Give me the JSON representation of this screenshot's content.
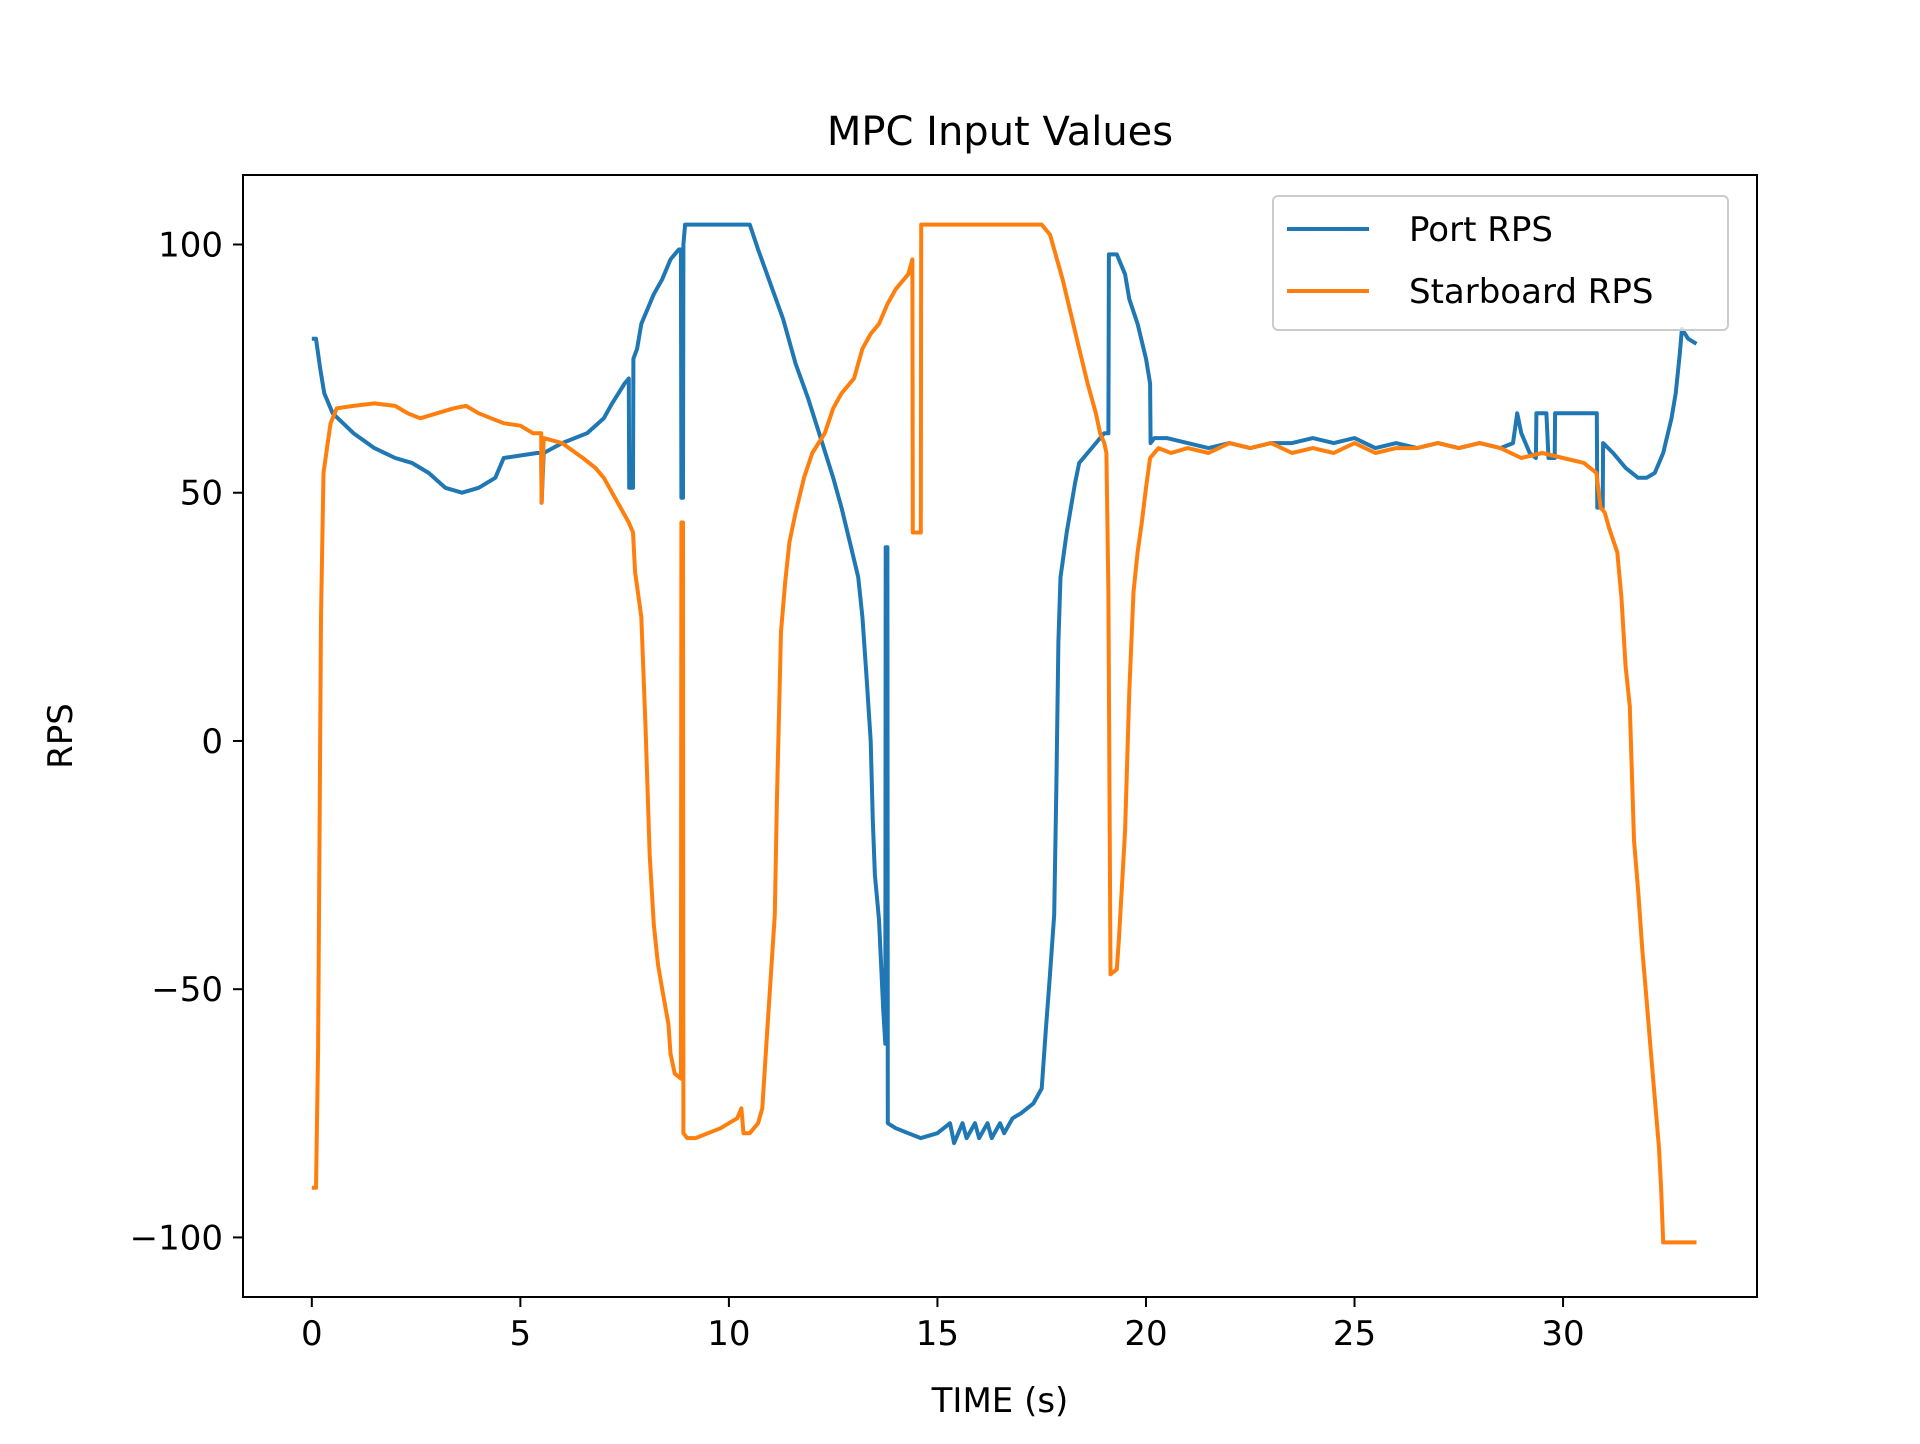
{
  "chart_data": {
    "type": "line",
    "title": "MPC Input Values",
    "xlabel": "TIME (s)",
    "ylabel": "RPS",
    "xlim": [
      -1.65,
      34.65
    ],
    "ylim": [
      -112,
      114
    ],
    "xticks": [
      0,
      5,
      10,
      15,
      20,
      25,
      30
    ],
    "xtick_labels": [
      "0",
      "5",
      "10",
      "15",
      "20",
      "25",
      "30"
    ],
    "yticks": [
      100,
      50,
      0,
      -50,
      -100
    ],
    "ytick_labels": [
      "100",
      "50",
      "0",
      "−50",
      "−100"
    ],
    "grid": false,
    "legend_position": "top-right",
    "series": [
      {
        "name": "Port RPS",
        "color": "#1f77b4",
        "points": [
          [
            0.0,
            81
          ],
          [
            0.1,
            81
          ],
          [
            0.2,
            75
          ],
          [
            0.3,
            70
          ],
          [
            0.5,
            66
          ],
          [
            1.0,
            62
          ],
          [
            1.5,
            59
          ],
          [
            2.0,
            57
          ],
          [
            2.4,
            56
          ],
          [
            2.8,
            54
          ],
          [
            3.2,
            51
          ],
          [
            3.6,
            50
          ],
          [
            4.0,
            51
          ],
          [
            4.4,
            53
          ],
          [
            4.6,
            57
          ],
          [
            5.0,
            57.5
          ],
          [
            5.4,
            58
          ],
          [
            5.5,
            58
          ],
          [
            5.51,
            48
          ],
          [
            5.56,
            58
          ],
          [
            6.0,
            60
          ],
          [
            6.6,
            62
          ],
          [
            7.0,
            65
          ],
          [
            7.2,
            68
          ],
          [
            7.5,
            72
          ],
          [
            7.6,
            73
          ],
          [
            7.61,
            51
          ],
          [
            7.7,
            51
          ],
          [
            7.71,
            77
          ],
          [
            7.8,
            79
          ],
          [
            7.9,
            84
          ],
          [
            8.2,
            90
          ],
          [
            8.4,
            93
          ],
          [
            8.6,
            97
          ],
          [
            8.8,
            99
          ],
          [
            8.85,
            99
          ],
          [
            8.86,
            49
          ],
          [
            8.9,
            49
          ],
          [
            8.91,
            100
          ],
          [
            8.95,
            104
          ],
          [
            9.5,
            104
          ],
          [
            10.0,
            104
          ],
          [
            10.5,
            104
          ],
          [
            10.7,
            99
          ],
          [
            11.0,
            92
          ],
          [
            11.3,
            85
          ],
          [
            11.6,
            76
          ],
          [
            11.9,
            69
          ],
          [
            12.2,
            61
          ],
          [
            12.5,
            53
          ],
          [
            12.7,
            47
          ],
          [
            12.9,
            40
          ],
          [
            13.1,
            33
          ],
          [
            13.2,
            25
          ],
          [
            13.3,
            13
          ],
          [
            13.4,
            0
          ],
          [
            13.45,
            -16
          ],
          [
            13.5,
            -27
          ],
          [
            13.6,
            -36
          ],
          [
            13.65,
            -45
          ],
          [
            13.7,
            -54
          ],
          [
            13.75,
            -61
          ],
          [
            13.76,
            39
          ],
          [
            13.8,
            39
          ],
          [
            13.81,
            -77
          ],
          [
            14.0,
            -78
          ],
          [
            14.3,
            -79
          ],
          [
            14.6,
            -80
          ],
          [
            15.0,
            -79
          ],
          [
            15.3,
            -77
          ],
          [
            15.4,
            -81
          ],
          [
            15.6,
            -77
          ],
          [
            15.7,
            -80
          ],
          [
            15.9,
            -77
          ],
          [
            16.0,
            -80
          ],
          [
            16.2,
            -77
          ],
          [
            16.3,
            -80
          ],
          [
            16.5,
            -77
          ],
          [
            16.6,
            -79
          ],
          [
            16.8,
            -76
          ],
          [
            17.0,
            -75
          ],
          [
            17.3,
            -73
          ],
          [
            17.5,
            -70
          ],
          [
            17.6,
            -58
          ],
          [
            17.7,
            -47
          ],
          [
            17.8,
            -35
          ],
          [
            17.85,
            -10
          ],
          [
            17.9,
            20
          ],
          [
            17.95,
            33
          ],
          [
            18.0,
            36
          ],
          [
            18.1,
            42
          ],
          [
            18.2,
            47
          ],
          [
            18.3,
            52
          ],
          [
            18.4,
            56
          ],
          [
            18.6,
            58
          ],
          [
            18.8,
            60
          ],
          [
            18.9,
            61
          ],
          [
            19.0,
            62
          ],
          [
            19.1,
            62
          ],
          [
            19.11,
            98
          ],
          [
            19.3,
            98
          ],
          [
            19.5,
            94
          ],
          [
            19.6,
            89
          ],
          [
            19.8,
            84
          ],
          [
            20.0,
            77
          ],
          [
            20.1,
            72
          ],
          [
            20.11,
            60
          ],
          [
            20.2,
            61
          ],
          [
            20.5,
            61
          ],
          [
            21.0,
            60
          ],
          [
            21.5,
            59
          ],
          [
            22.0,
            60
          ],
          [
            22.5,
            59
          ],
          [
            23.0,
            60
          ],
          [
            23.5,
            60
          ],
          [
            24.0,
            61
          ],
          [
            24.5,
            60
          ],
          [
            25.0,
            61
          ],
          [
            25.5,
            59
          ],
          [
            26.0,
            60
          ],
          [
            26.5,
            59
          ],
          [
            27.0,
            60
          ],
          [
            27.5,
            59
          ],
          [
            28.0,
            60
          ],
          [
            28.5,
            59
          ],
          [
            28.8,
            60
          ],
          [
            28.9,
            66
          ],
          [
            29.0,
            62
          ],
          [
            29.2,
            58
          ],
          [
            29.35,
            57
          ],
          [
            29.36,
            66
          ],
          [
            29.6,
            66
          ],
          [
            29.65,
            57
          ],
          [
            29.8,
            57
          ],
          [
            29.81,
            66
          ],
          [
            30.2,
            66
          ],
          [
            30.5,
            66
          ],
          [
            30.81,
            66
          ],
          [
            30.82,
            47
          ],
          [
            30.95,
            47
          ],
          [
            30.96,
            60
          ],
          [
            31.2,
            58
          ],
          [
            31.5,
            55
          ],
          [
            31.8,
            53
          ],
          [
            32.0,
            53
          ],
          [
            32.2,
            54
          ],
          [
            32.4,
            58
          ],
          [
            32.6,
            65
          ],
          [
            32.7,
            70
          ],
          [
            32.8,
            78
          ],
          [
            32.85,
            83
          ],
          [
            33.0,
            81
          ],
          [
            33.2,
            80
          ]
        ]
      },
      {
        "name": "Starboard RPS",
        "color": "#ff7f0e",
        "points": [
          [
            0.0,
            -90
          ],
          [
            0.1,
            -90
          ],
          [
            0.15,
            -62
          ],
          [
            0.22,
            25
          ],
          [
            0.28,
            54
          ],
          [
            0.38,
            60
          ],
          [
            0.45,
            64
          ],
          [
            0.6,
            67
          ],
          [
            1.0,
            67.5
          ],
          [
            1.5,
            68
          ],
          [
            2.0,
            67.5
          ],
          [
            2.3,
            66
          ],
          [
            2.6,
            65
          ],
          [
            3.0,
            66
          ],
          [
            3.4,
            67
          ],
          [
            3.7,
            67.5
          ],
          [
            4.0,
            66
          ],
          [
            4.3,
            65
          ],
          [
            4.6,
            64
          ],
          [
            5.0,
            63.5
          ],
          [
            5.3,
            62
          ],
          [
            5.5,
            62
          ],
          [
            5.51,
            48
          ],
          [
            5.56,
            61
          ],
          [
            6.0,
            60
          ],
          [
            6.5,
            57
          ],
          [
            6.8,
            55
          ],
          [
            7.0,
            53
          ],
          [
            7.2,
            50
          ],
          [
            7.4,
            47
          ],
          [
            7.6,
            44
          ],
          [
            7.7,
            42
          ],
          [
            7.75,
            34
          ],
          [
            7.9,
            25
          ],
          [
            8.0,
            3
          ],
          [
            8.1,
            -23
          ],
          [
            8.2,
            -37
          ],
          [
            8.3,
            -45
          ],
          [
            8.4,
            -50
          ],
          [
            8.55,
            -57
          ],
          [
            8.6,
            -63
          ],
          [
            8.7,
            -67
          ],
          [
            8.85,
            -68
          ],
          [
            8.86,
            44
          ],
          [
            8.9,
            44
          ],
          [
            8.91,
            -79
          ],
          [
            9.0,
            -80
          ],
          [
            9.2,
            -80
          ],
          [
            9.5,
            -79
          ],
          [
            9.8,
            -78
          ],
          [
            10.0,
            -77
          ],
          [
            10.2,
            -76
          ],
          [
            10.3,
            -74
          ],
          [
            10.35,
            -79
          ],
          [
            10.5,
            -79
          ],
          [
            10.7,
            -77
          ],
          [
            10.8,
            -74
          ],
          [
            10.9,
            -61
          ],
          [
            11.0,
            -48
          ],
          [
            11.1,
            -35
          ],
          [
            11.15,
            -12
          ],
          [
            11.25,
            22
          ],
          [
            11.35,
            32
          ],
          [
            11.45,
            40
          ],
          [
            11.6,
            46
          ],
          [
            11.8,
            53
          ],
          [
            12.0,
            58
          ],
          [
            12.3,
            62
          ],
          [
            12.5,
            67
          ],
          [
            12.7,
            70
          ],
          [
            13.0,
            73
          ],
          [
            13.2,
            79
          ],
          [
            13.4,
            82
          ],
          [
            13.6,
            84
          ],
          [
            13.8,
            88
          ],
          [
            14.0,
            91
          ],
          [
            14.3,
            94
          ],
          [
            14.4,
            97
          ],
          [
            14.41,
            42
          ],
          [
            14.6,
            42
          ],
          [
            14.61,
            104
          ],
          [
            15.0,
            104
          ],
          [
            16.0,
            104
          ],
          [
            17.0,
            104
          ],
          [
            17.5,
            104
          ],
          [
            17.7,
            102
          ],
          [
            17.8,
            99
          ],
          [
            18.0,
            93
          ],
          [
            18.2,
            86
          ],
          [
            18.4,
            79
          ],
          [
            18.6,
            72
          ],
          [
            18.8,
            66
          ],
          [
            18.9,
            62
          ],
          [
            19.0,
            60
          ],
          [
            19.05,
            58
          ],
          [
            19.1,
            30
          ],
          [
            19.15,
            -47
          ],
          [
            19.3,
            -46
          ],
          [
            19.35,
            -40
          ],
          [
            19.5,
            -18
          ],
          [
            19.6,
            10
          ],
          [
            19.7,
            30
          ],
          [
            19.8,
            38
          ],
          [
            19.9,
            44
          ],
          [
            20.0,
            51
          ],
          [
            20.1,
            57
          ],
          [
            20.3,
            59
          ],
          [
            20.6,
            58
          ],
          [
            21.0,
            59
          ],
          [
            21.5,
            58
          ],
          [
            22.0,
            60
          ],
          [
            22.5,
            59
          ],
          [
            23.0,
            60
          ],
          [
            23.5,
            58
          ],
          [
            24.0,
            59
          ],
          [
            24.5,
            58
          ],
          [
            25.0,
            60
          ],
          [
            25.5,
            58
          ],
          [
            26.0,
            59
          ],
          [
            26.5,
            59
          ],
          [
            27.0,
            60
          ],
          [
            27.5,
            59
          ],
          [
            28.0,
            60
          ],
          [
            28.5,
            59
          ],
          [
            29.0,
            57
          ],
          [
            29.5,
            58
          ],
          [
            30.0,
            57
          ],
          [
            30.5,
            56
          ],
          [
            30.8,
            54
          ],
          [
            30.9,
            47
          ],
          [
            31.0,
            46
          ],
          [
            31.1,
            43
          ],
          [
            31.3,
            38
          ],
          [
            31.4,
            29
          ],
          [
            31.5,
            15
          ],
          [
            31.6,
            7
          ],
          [
            31.7,
            -20
          ],
          [
            31.8,
            -30
          ],
          [
            31.9,
            -42
          ],
          [
            32.0,
            -52
          ],
          [
            32.1,
            -62
          ],
          [
            32.2,
            -72
          ],
          [
            32.3,
            -82
          ],
          [
            32.35,
            -90
          ],
          [
            32.4,
            -101
          ],
          [
            32.6,
            -101
          ],
          [
            33.0,
            -101
          ],
          [
            33.2,
            -101
          ]
        ]
      }
    ]
  }
}
